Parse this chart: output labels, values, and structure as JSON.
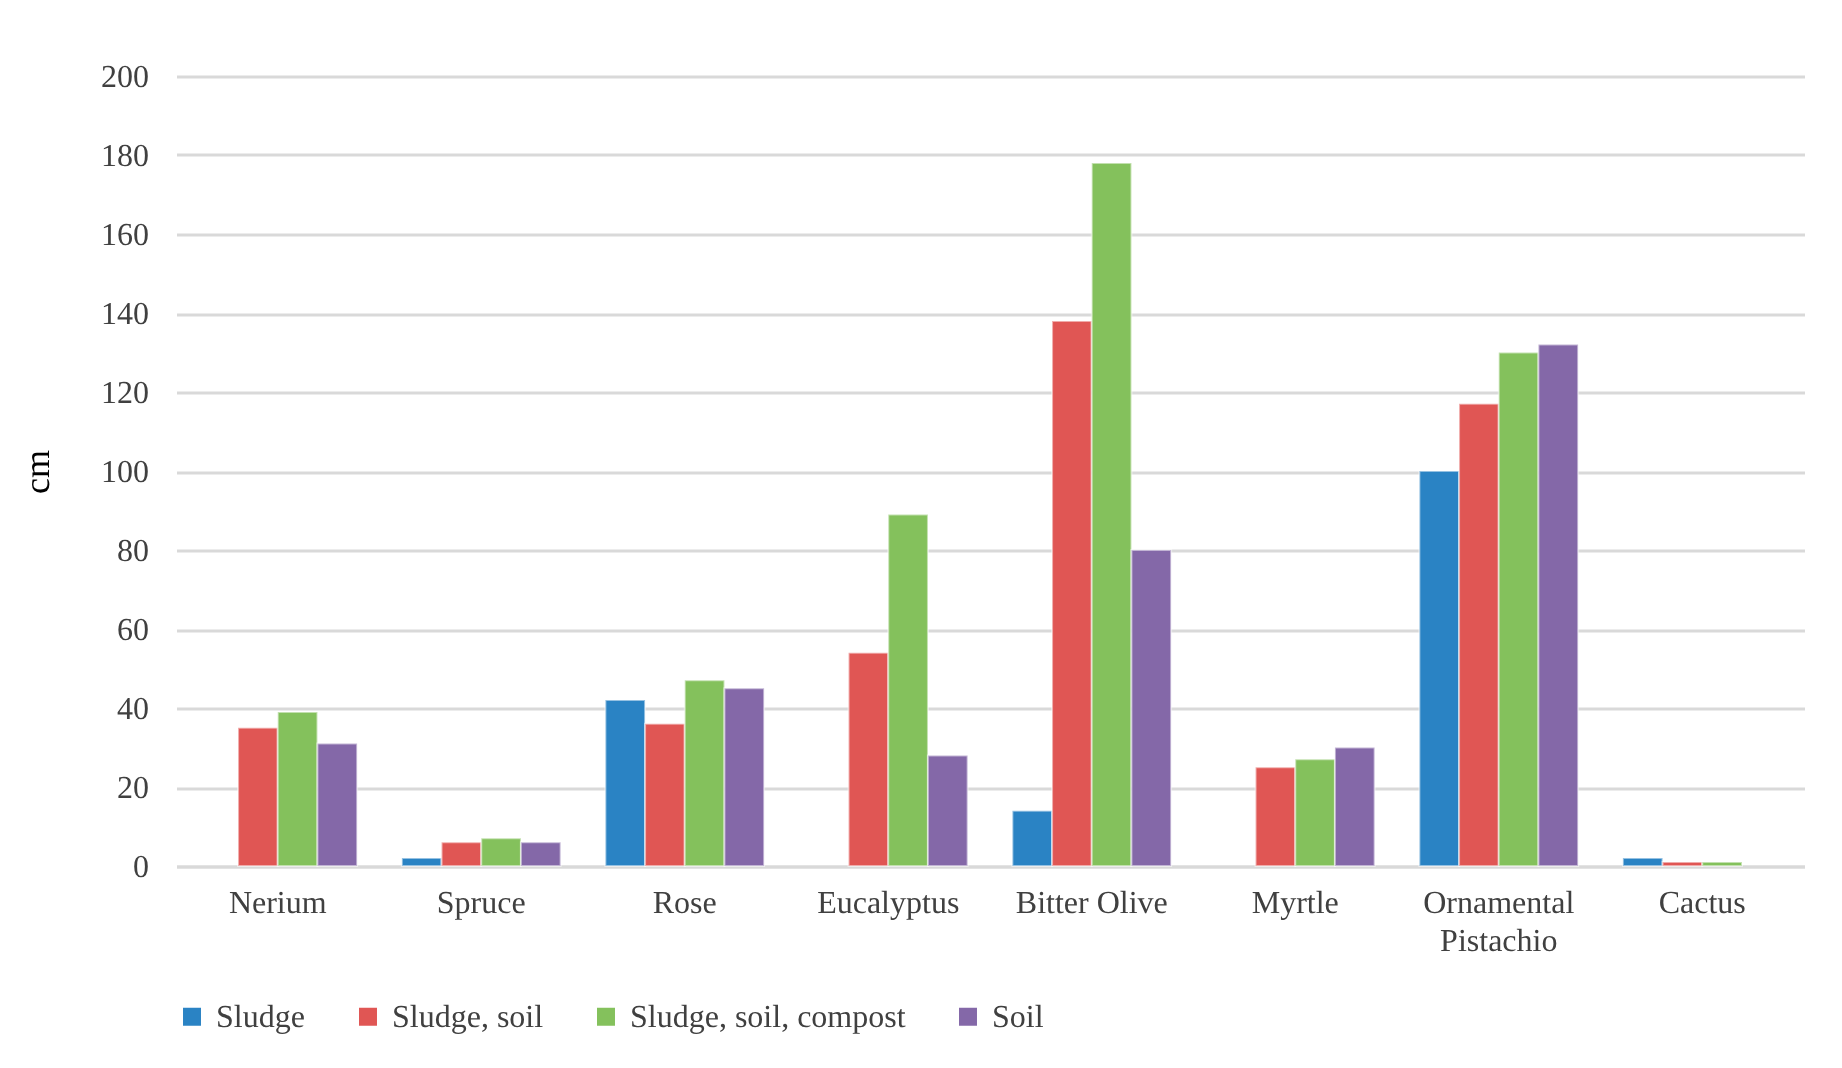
{
  "chart_data": {
    "type": "bar",
    "ylabel": "cm",
    "categories": [
      "Nerium",
      "Spruce",
      "Rose",
      "Eucalyptus",
      "Bitter Olive",
      "Myrtle",
      "Ornamental Pistachio",
      "Cactus"
    ],
    "series": [
      {
        "name": "Sludge",
        "color": "#2a83c4",
        "values": [
          null,
          2,
          42,
          null,
          14,
          null,
          100,
          2
        ]
      },
      {
        "name": "Sludge, soil",
        "color": "#e05654",
        "values": [
          35,
          6,
          36,
          54,
          138,
          25,
          117,
          1
        ]
      },
      {
        "name": "Sludge, soil, compost",
        "color": "#84c15c",
        "values": [
          39,
          7,
          47,
          89,
          178,
          27,
          130,
          1
        ]
      },
      {
        "name": "Soil",
        "color": "#8468a8",
        "values": [
          31,
          6,
          45,
          28,
          80,
          30,
          132,
          null
        ]
      }
    ],
    "ylim": [
      0,
      200
    ],
    "yticks": [
      0,
      20,
      40,
      60,
      80,
      100,
      120,
      140,
      160,
      180,
      200
    ],
    "grid": "y",
    "legend": "bottom"
  }
}
